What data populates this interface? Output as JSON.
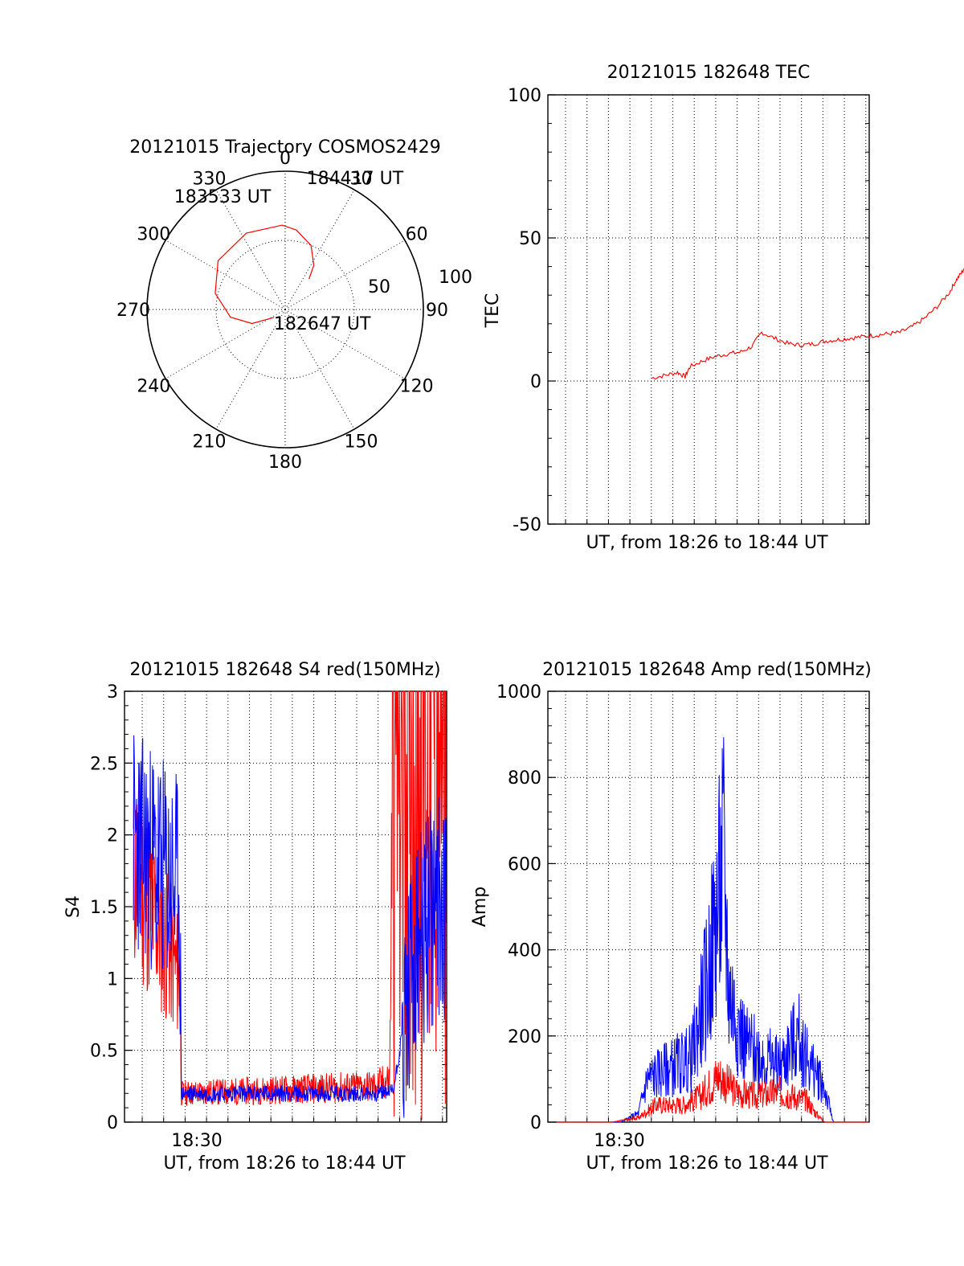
{
  "chart_data": [
    {
      "type": "polar",
      "title": "20121015 Trajectory COSMOS2429",
      "angle_labels": [
        "0",
        "30",
        "60",
        "90",
        "120",
        "150",
        "180",
        "210",
        "240",
        "270",
        "300",
        "330"
      ],
      "radial_labels": [
        "50",
        "100"
      ],
      "radial_max": 100,
      "ring_step": 50,
      "series": [
        {
          "color": "#ff0000",
          "points": [
            [
              235,
              90
            ],
            [
              247,
              74
            ],
            [
              262,
              60
            ],
            [
              283,
              48
            ],
            [
              306,
              40
            ],
            [
              333,
              38
            ],
            [
              358,
              39
            ],
            [
              8,
              42
            ],
            [
              22,
              50
            ],
            [
              33,
              62
            ],
            [
              38,
              72
            ]
          ]
        }
      ],
      "annotations": [
        {
          "text": "182647 UT",
          "az": 235,
          "el": 90
        },
        {
          "text": "183533 UT",
          "az": 320,
          "el": 22
        },
        {
          "text": "184417 UT",
          "az": 38,
          "el": 72
        }
      ]
    },
    {
      "type": "line",
      "title": "20121015 182648 TEC",
      "xlabel": "UT, from 18:26 to 18:44 UT",
      "ylabel": "TEC",
      "ylim": [
        -50,
        100
      ],
      "ytick_labels": [
        "-50",
        "0",
        "50",
        "100"
      ],
      "xlim_minutes": [
        18.5,
        44.5
      ],
      "grid": true,
      "series": [
        {
          "color": "#ff0000",
          "x": [
            26.9,
            28,
            29,
            29.6,
            30,
            31,
            32,
            33,
            34,
            35,
            35.8,
            36.8,
            38,
            39,
            40,
            41,
            42,
            43,
            44,
            45,
            46,
            47,
            48,
            49,
            50,
            51,
            51.5,
            52,
            52.5,
            53,
            54,
            54.5,
            55,
            55.5,
            56,
            56.5,
            57,
            57.5,
            58,
            58.5,
            59,
            60
          ],
          "y": [
            1,
            2,
            3,
            1.5,
            5,
            7,
            8.5,
            9.5,
            10,
            12,
            17,
            15,
            13,
            12.5,
            13,
            14,
            14.5,
            15,
            15.5,
            16,
            16.5,
            17,
            19,
            22,
            26,
            31,
            35,
            38,
            42,
            46,
            50,
            53,
            50,
            48,
            52,
            53,
            53.5,
            54,
            54.5,
            54,
            54.5,
            54.5
          ]
        }
      ]
    },
    {
      "type": "line",
      "title": "20121015 182648 S4 red(150MHz)",
      "xlabel": "UT, from 18:26 to 18:44 UT",
      "ylabel": "S4",
      "ylim": [
        0,
        3
      ],
      "ytick_labels": [
        "0",
        "0.5",
        "1",
        "1.5",
        "2",
        "2.5",
        "3"
      ],
      "xtick_labels": [
        "18:30"
      ],
      "grid": true,
      "series": [
        {
          "color": "#0000ff",
          "x": [
            26.9,
            29.5,
            29.6,
            40.5,
            41.5,
            42.5,
            43.5,
            44.0,
            44.5
          ],
          "y": [
            2.0,
            1.6,
            0.2,
            0.2,
            0.22,
            1.0,
            1.4,
            1.5,
            1.5
          ]
        },
        {
          "color": "#ff0000",
          "x": [
            26.9,
            29.5,
            29.6,
            40.5,
            41.3,
            41.5,
            44.5
          ],
          "y": [
            1.8,
            1.0,
            0.2,
            0.25,
            0.3,
            3.0,
            3.0
          ]
        }
      ]
    },
    {
      "type": "line",
      "title": "20121015 182648 Amp red(150MHz)",
      "xlabel": "UT, from 18:26 to 18:44 UT",
      "ylabel": "Amp",
      "ylim": [
        0,
        1000
      ],
      "ytick_labels": [
        "0",
        "200",
        "400",
        "600",
        "800",
        "1000"
      ],
      "xtick_labels": [
        "18:30"
      ],
      "grid": true,
      "series": [
        {
          "color": "#0000ff",
          "x": [
            26.9,
            30.5,
            31.5,
            32.0,
            33.0,
            34.5,
            35.5,
            36.3,
            36.6,
            37.5,
            38.5,
            39.5,
            40.5,
            41.3,
            41.8,
            42.5,
            44.5
          ],
          "y": [
            0,
            0,
            20,
            100,
            120,
            150,
            350,
            600,
            300,
            180,
            150,
            130,
            200,
            120,
            100,
            0,
            0
          ]
        },
        {
          "color": "#ff0000",
          "x": [
            26.9,
            30.0,
            31.5,
            32.5,
            34.0,
            35.0,
            36.0,
            37.0,
            38.0,
            39.5,
            41.0,
            41.5,
            42.0,
            44.5
          ],
          "y": [
            0,
            0,
            10,
            40,
            40,
            60,
            110,
            70,
            60,
            70,
            50,
            20,
            0,
            0
          ]
        }
      ]
    }
  ]
}
